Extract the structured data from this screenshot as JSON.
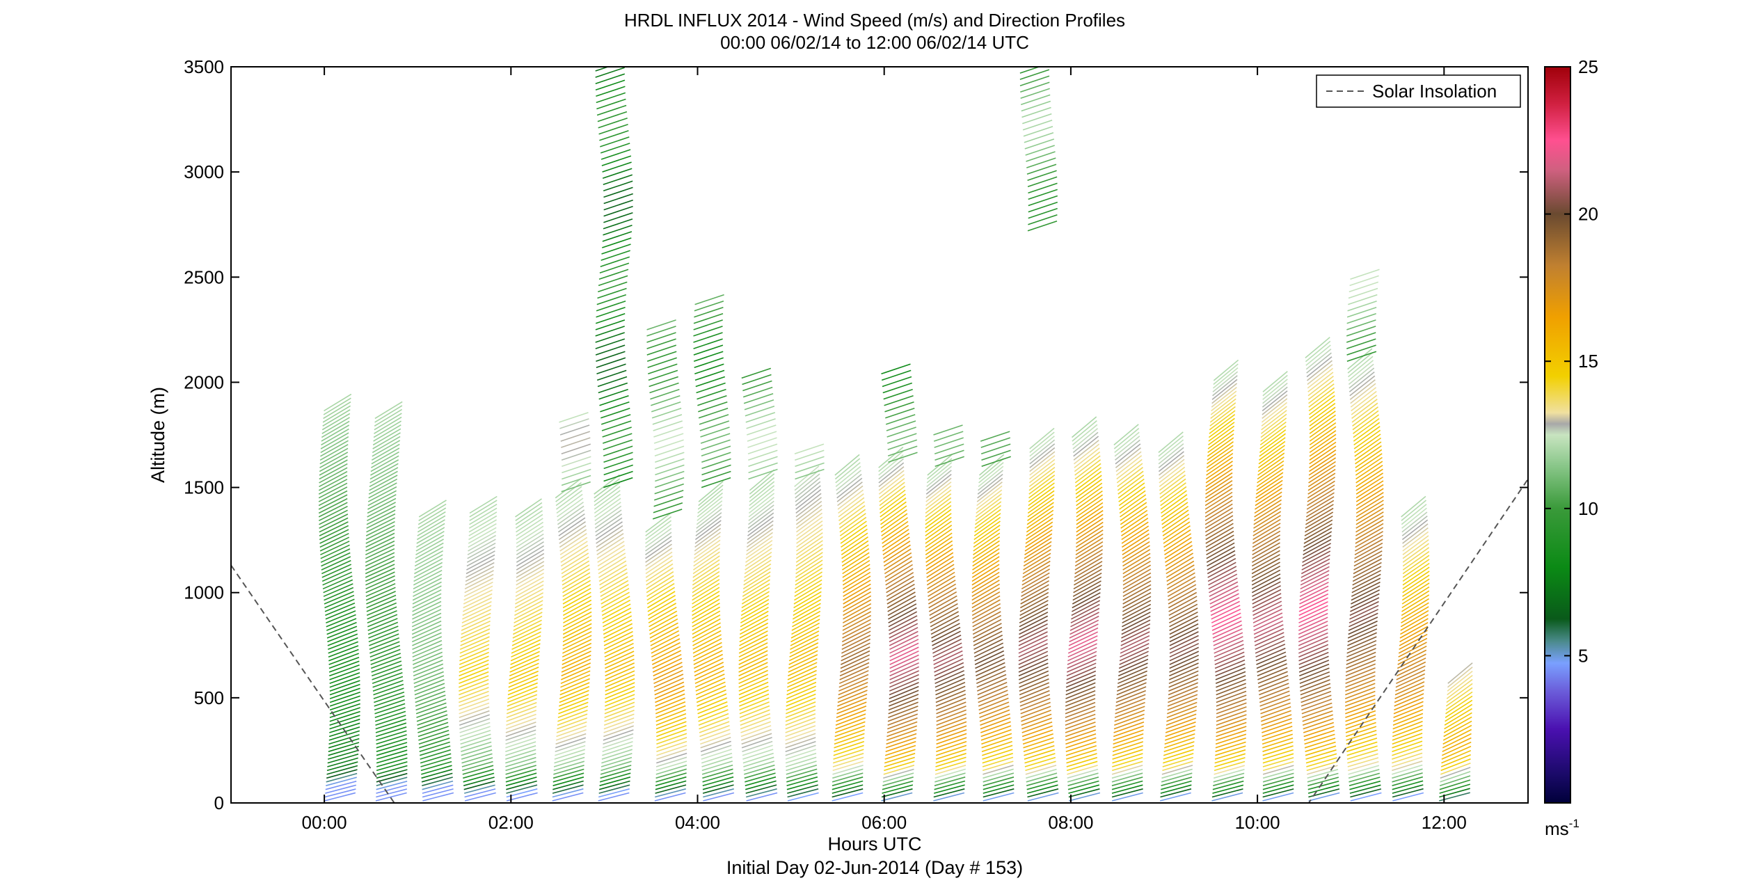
{
  "chart_data": {
    "type": "wind-barb-profile",
    "title": "HRDL INFLUX 2014 - Wind Speed (m/s) and Direction Profiles",
    "subtitle": "00:00 06/02/14 to 12:00 06/02/14  UTC",
    "xlabel": "Hours UTC",
    "xlabel2": "Initial Day 02-Jun-2014 (Day # 153)",
    "ylabel": "Altitude (m)",
    "xlim": [
      -1.0,
      12.9
    ],
    "ylim": [
      0,
      3500
    ],
    "xticks": [
      0,
      2,
      4,
      6,
      8,
      10,
      12
    ],
    "xtick_labels": [
      "00:00",
      "02:00",
      "04:00",
      "06:00",
      "08:00",
      "10:00",
      "12:00"
    ],
    "yticks": [
      0,
      500,
      1000,
      1500,
      2000,
      2500,
      3000,
      3500
    ],
    "ytick_labels": [
      "0",
      "500",
      "1000",
      "1500",
      "2000",
      "2500",
      "3000",
      "3500"
    ],
    "legend": {
      "label": "Solar Insolation",
      "position": "top-right"
    },
    "colorbar": {
      "range": [
        0,
        25
      ],
      "ticks": [
        5,
        10,
        15,
        20,
        25
      ],
      "tick_labels": [
        "5",
        "10",
        "15",
        "20",
        "25"
      ],
      "unit_base": "ms",
      "unit_exp": "-1"
    },
    "insolation_line": [
      [
        -1.0,
        1130
      ],
      [
        0.75,
        0
      ],
      [
        10.55,
        0
      ],
      [
        12.9,
        1540
      ]
    ],
    "profiles": [
      {
        "t": 0.0,
        "top": 1880,
        "smax": 8.5,
        "sfloor": 6.5,
        "slope": 0.3
      },
      {
        "t": 0.5,
        "top": 1830,
        "smax": 9.5,
        "sfloor": 7.0,
        "slope": 0.3
      },
      {
        "t": 1.0,
        "top": 1370,
        "smax": 11.0,
        "sfloor": 6.5,
        "slope": 0.3
      },
      {
        "t": 1.5,
        "top": 1390,
        "smax": 14.5,
        "sfloor": 6.5,
        "slope": 0.3
      },
      {
        "t": 2.0,
        "top": 1360,
        "smax": 15.0,
        "sfloor": 7.0,
        "slope": 0.35
      },
      {
        "t": 2.5,
        "top": 1460,
        "smax": 16.0,
        "sfloor": 7.0,
        "slope": 0.4
      },
      {
        "t": 2.95,
        "top": 1470,
        "smax": 15.5,
        "sfloor": 7.0,
        "slope": 0.4
      },
      {
        "t": 3.5,
        "top": 1300,
        "smax": 17.0,
        "sfloor": 7.0,
        "slope": 0.4
      },
      {
        "t": 4.0,
        "top": 1440,
        "smax": 16.0,
        "sfloor": 7.5,
        "slope": 0.45
      },
      {
        "t": 4.5,
        "top": 1490,
        "smax": 15.5,
        "sfloor": 8.0,
        "slope": 0.45
      },
      {
        "t": 5.0,
        "top": 1510,
        "smax": 15.5,
        "sfloor": 8.5,
        "slope": 0.45
      },
      {
        "t": 5.5,
        "top": 1560,
        "smax": 19.0,
        "sfloor": 8.0,
        "slope": 0.45
      },
      {
        "t": 6.0,
        "top": 1600,
        "smax": 22.0,
        "sfloor": 8.0,
        "slope": 0.45
      },
      {
        "t": 6.5,
        "top": 1560,
        "smax": 21.0,
        "sfloor": 8.0,
        "slope": 0.45
      },
      {
        "t": 7.0,
        "top": 1560,
        "smax": 20.0,
        "sfloor": 8.0,
        "slope": 0.45
      },
      {
        "t": 7.5,
        "top": 1700,
        "smax": 21.0,
        "sfloor": 8.0,
        "slope": 0.45
      },
      {
        "t": 8.0,
        "top": 1740,
        "smax": 22.0,
        "sfloor": 8.0,
        "slope": 0.45
      },
      {
        "t": 8.5,
        "top": 1710,
        "smax": 21.0,
        "sfloor": 8.0,
        "slope": 0.45
      },
      {
        "t": 9.0,
        "top": 1680,
        "smax": 20.5,
        "sfloor": 8.0,
        "slope": 0.45
      },
      {
        "t": 9.5,
        "top": 2020,
        "smax": 22.5,
        "sfloor": 8.0,
        "slope": 0.45
      },
      {
        "t": 10.0,
        "top": 1970,
        "smax": 21.5,
        "sfloor": 8.0,
        "slope": 0.45
      },
      {
        "t": 10.5,
        "top": 2130,
        "smax": 22.5,
        "sfloor": 8.0,
        "slope": 0.45
      },
      {
        "t": 11.0,
        "top": 2070,
        "smax": 20.5,
        "sfloor": 8.0,
        "slope": 0.45
      },
      {
        "t": 11.5,
        "top": 1370,
        "smax": 18.0,
        "sfloor": 8.0,
        "slope": 0.45
      },
      {
        "t": 12.0,
        "top": 570,
        "smax": 16.0,
        "sfloor": 9.0,
        "slope": 0.45
      }
    ],
    "upper_segments": [
      {
        "t": 2.95,
        "z0": 1500,
        "z1": 3500,
        "s": 8.0
      },
      {
        "t": 7.5,
        "z0": 2720,
        "z1": 3500,
        "s": 10.5
      },
      {
        "t": 4.0,
        "z0": 1500,
        "z1": 2380,
        "s": 9.5
      },
      {
        "t": 3.5,
        "z0": 1350,
        "z1": 2250,
        "s": 11.0
      },
      {
        "t": 4.5,
        "z0": 1540,
        "z1": 2040,
        "s": 11.0
      },
      {
        "t": 2.5,
        "z0": 1480,
        "z1": 1820,
        "s": 11.5
      },
      {
        "t": 6.0,
        "z0": 1620,
        "z1": 2060,
        "s": 9.5
      },
      {
        "t": 11.0,
        "z0": 2100,
        "z1": 2490,
        "s": 11.0
      },
      {
        "t": 5.0,
        "z0": 1540,
        "z1": 1660,
        "s": 11.0
      },
      {
        "t": 6.5,
        "z0": 1600,
        "z1": 1750,
        "s": 9.5
      },
      {
        "t": 7.0,
        "z0": 1600,
        "z1": 1730,
        "s": 9.0
      }
    ]
  }
}
